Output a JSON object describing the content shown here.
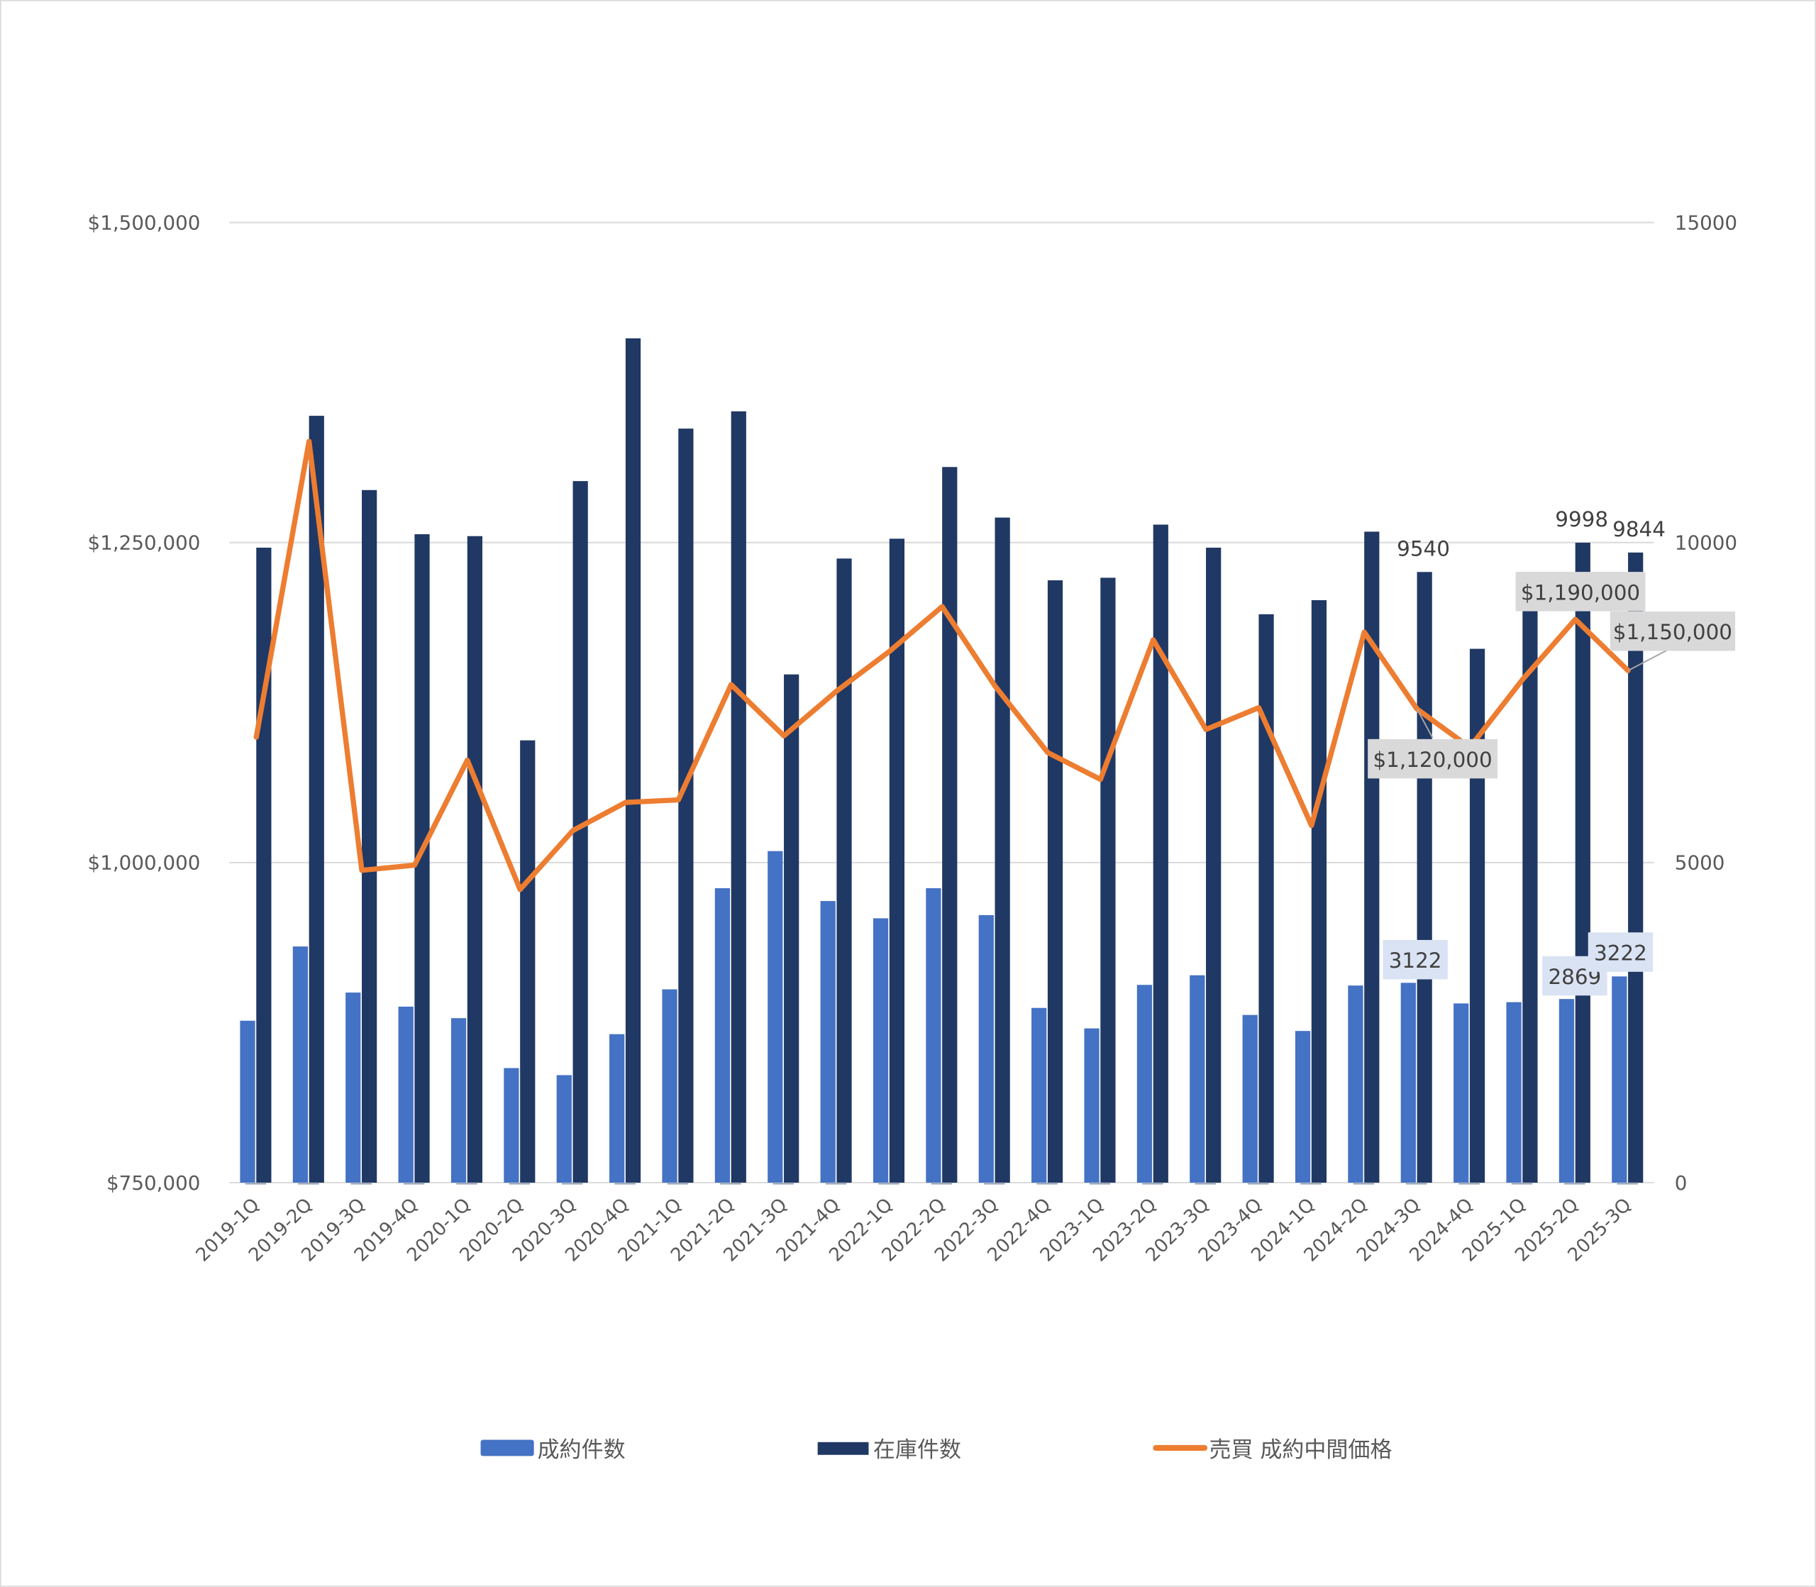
{
  "chart_data": {
    "type": "bar",
    "title": "",
    "categories": [
      "2019-1Q",
      "2019-2Q",
      "2019-3Q",
      "2019-4Q",
      "2020-1Q",
      "2020-2Q",
      "2020-3Q",
      "2020-4Q",
      "2021-1Q",
      "2021-2Q",
      "2021-3Q",
      "2021-4Q",
      "2022-1Q",
      "2022-2Q",
      "2022-3Q",
      "2022-4Q",
      "2023-1Q",
      "2023-2Q",
      "2023-3Q",
      "2023-4Q",
      "2024-1Q",
      "2024-2Q",
      "2024-3Q",
      "2024-4Q",
      "2025-1Q",
      "2025-2Q",
      "2025-3Q"
    ],
    "series": [
      {
        "name": "成約件数",
        "type": "bar",
        "axis": "right",
        "color": "#4472c4",
        "values": [
          2530,
          3690,
          2970,
          2750,
          2570,
          1790,
          1680,
          2320,
          3020,
          4600,
          5180,
          4400,
          4130,
          4600,
          4180,
          2730,
          2410,
          3090,
          3240,
          2620,
          2370,
          3080,
          3122,
          2800,
          2820,
          2869,
          3222
        ],
        "labels": {
          "22": "3122",
          "25": "2869",
          "26": "3222"
        }
      },
      {
        "name": "在庫件数",
        "type": "bar",
        "axis": "right",
        "color": "#203864",
        "values": [
          9920,
          11980,
          10820,
          10130,
          10100,
          6910,
          10960,
          13190,
          11780,
          12050,
          7940,
          9750,
          10060,
          11180,
          10390,
          9410,
          9450,
          10280,
          9920,
          8880,
          9100,
          10170,
          9540,
          8340,
          8970,
          9998,
          9844
        ],
        "labels": {
          "22": "9540",
          "25": "9998",
          "26": "9844"
        }
      },
      {
        "name": "売買 成約中間価格",
        "type": "line",
        "axis": "left",
        "color": "#ed7d31",
        "values": [
          1098000,
          1329000,
          994000,
          998000,
          1080000,
          979000,
          1025000,
          1047000,
          1049000,
          1139000,
          1099000,
          1134000,
          1165000,
          1200000,
          1138000,
          1086000,
          1065000,
          1174000,
          1104000,
          1121000,
          1029000,
          1180000,
          1120000,
          1090000,
          1143000,
          1190000,
          1150000
        ],
        "labels": {
          "22": "$1,120,000",
          "25": "$1,190,000",
          "26": "$1,150,000"
        }
      }
    ],
    "left_axis": {
      "ylim": [
        750000,
        1500000
      ],
      "ticks": [
        "$750,000",
        "$1,000,000",
        "$1,250,000",
        "$1,500,000"
      ],
      "tick_values": [
        750000,
        1000000,
        1250000,
        1500000
      ]
    },
    "right_axis": {
      "ylim": [
        0,
        15000
      ],
      "ticks": [
        "0",
        "5000",
        "10000",
        "15000"
      ],
      "tick_values": [
        0,
        5000,
        10000,
        15000
      ]
    },
    "grid": true,
    "legend_position": "bottom",
    "legend": [
      "成約件数",
      "在庫件数",
      "売買 成約中間価格"
    ]
  }
}
